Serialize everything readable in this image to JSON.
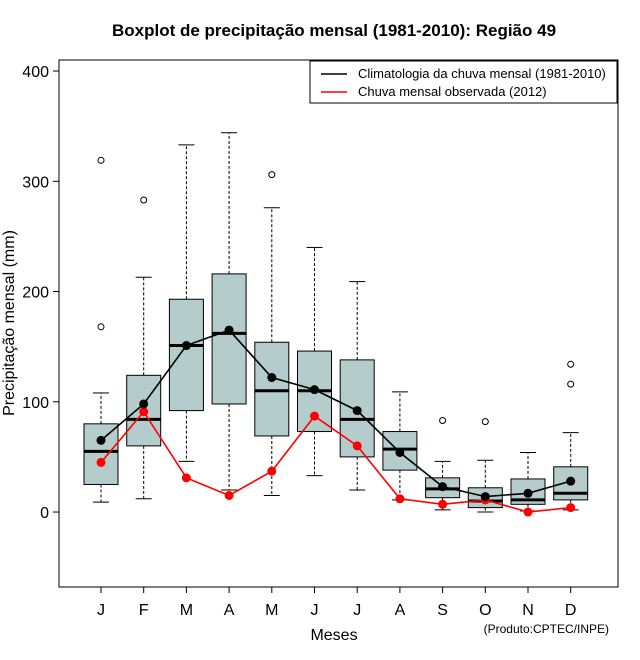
{
  "chart_data": {
    "type": "boxplot",
    "title": "Boxplot de precipitação mensal (1981-2010): Região 49",
    "xlabel": "Meses",
    "ylabel": "Precipitação mensal (mm)",
    "ylim": [
      -68,
      410
    ],
    "yticks": [
      0,
      100,
      200,
      300,
      400
    ],
    "categories": [
      "J",
      "F",
      "M",
      "A",
      "M",
      "J",
      "J",
      "A",
      "S",
      "O",
      "N",
      "D"
    ],
    "boxes": [
      {
        "whisker_low": 9,
        "q1": 25,
        "median": 55,
        "q3": 80,
        "whisker_high": 108,
        "outliers": [
          168,
          319
        ]
      },
      {
        "whisker_low": 12,
        "q1": 60,
        "median": 84,
        "q3": 124,
        "whisker_high": 213,
        "outliers": [
          283
        ]
      },
      {
        "whisker_low": 46,
        "q1": 92,
        "median": 151,
        "q3": 193,
        "whisker_high": 333,
        "outliers": []
      },
      {
        "whisker_low": 20,
        "q1": 98,
        "median": 162,
        "q3": 216,
        "whisker_high": 344,
        "outliers": []
      },
      {
        "whisker_low": 15,
        "q1": 69,
        "median": 110,
        "q3": 154,
        "whisker_high": 276,
        "outliers": [
          306
        ]
      },
      {
        "whisker_low": 33,
        "q1": 73,
        "median": 110,
        "q3": 146,
        "whisker_high": 240,
        "outliers": []
      },
      {
        "whisker_low": 20,
        "q1": 50,
        "median": 84,
        "q3": 138,
        "whisker_high": 209,
        "outliers": []
      },
      {
        "whisker_low": 11,
        "q1": 38,
        "median": 57,
        "q3": 73,
        "whisker_high": 109,
        "outliers": []
      },
      {
        "whisker_low": 2,
        "q1": 13,
        "median": 21,
        "q3": 31,
        "whisker_high": 46,
        "outliers": [
          83
        ]
      },
      {
        "whisker_low": 0,
        "q1": 4,
        "median": 10,
        "q3": 22,
        "whisker_high": 47,
        "outliers": [
          82
        ]
      },
      {
        "whisker_low": 1,
        "q1": 7,
        "median": 11,
        "q3": 30,
        "whisker_high": 54,
        "outliers": []
      },
      {
        "whisker_low": 2,
        "q1": 11,
        "median": 17,
        "q3": 41,
        "whisker_high": 72,
        "outliers": [
          116,
          134
        ]
      }
    ],
    "series": [
      {
        "name": "Climatologia da chuva mensal (1981-2010)",
        "color": "#000000",
        "values": [
          65,
          98,
          151,
          165,
          122,
          111,
          92,
          54,
          23,
          14,
          17,
          28
        ]
      },
      {
        "name": "Chuva mensal observada (2012)",
        "color": "#ff0000",
        "values": [
          45,
          91,
          31,
          15,
          37,
          87,
          60,
          12,
          7,
          11,
          0,
          4
        ]
      }
    ],
    "box_fill": "#b5cccc",
    "legend_position": "top-right",
    "credit": "(Produto:CPTEC/INPE)"
  }
}
